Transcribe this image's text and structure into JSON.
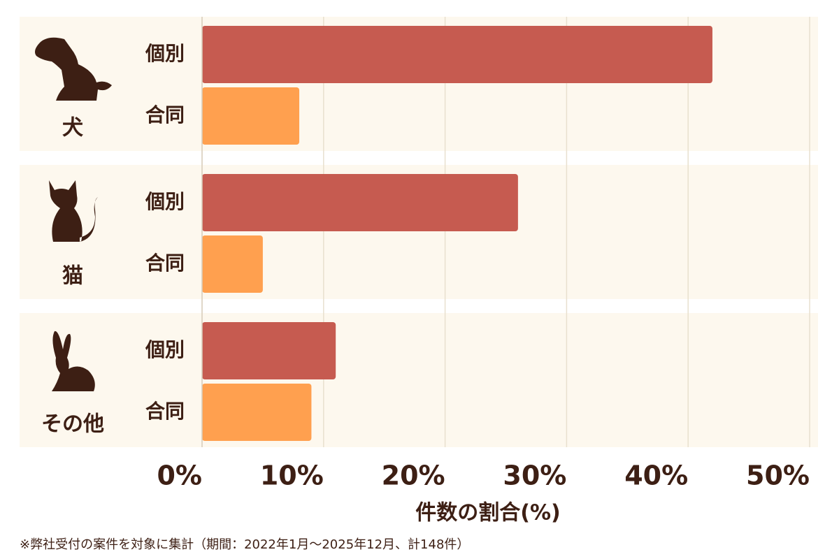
{
  "chart_data": {
    "type": "grouped-hbar",
    "categories": [
      "犬",
      "猫",
      "その他"
    ],
    "series": [
      {
        "name": "個別",
        "color": "#c65b50",
        "values": [
          42,
          26,
          11
        ]
      },
      {
        "name": "合同",
        "color": "#ffa04f",
        "values": [
          8,
          5,
          9
        ]
      }
    ],
    "xlim": [
      0,
      50
    ],
    "xticks": [
      {
        "value": 0,
        "label": "0%"
      },
      {
        "value": 10,
        "label": "10%"
      },
      {
        "value": 20,
        "label": "20%"
      },
      {
        "value": 30,
        "label": "30%"
      },
      {
        "value": 40,
        "label": "40%"
      },
      {
        "value": 50,
        "label": "50%"
      }
    ],
    "grid": true,
    "xlabel": "件数の割合(%)",
    "note": "※弊社受付の案件を対象に集計（期間：2022年1月〜2025年12月、計148件）"
  }
}
